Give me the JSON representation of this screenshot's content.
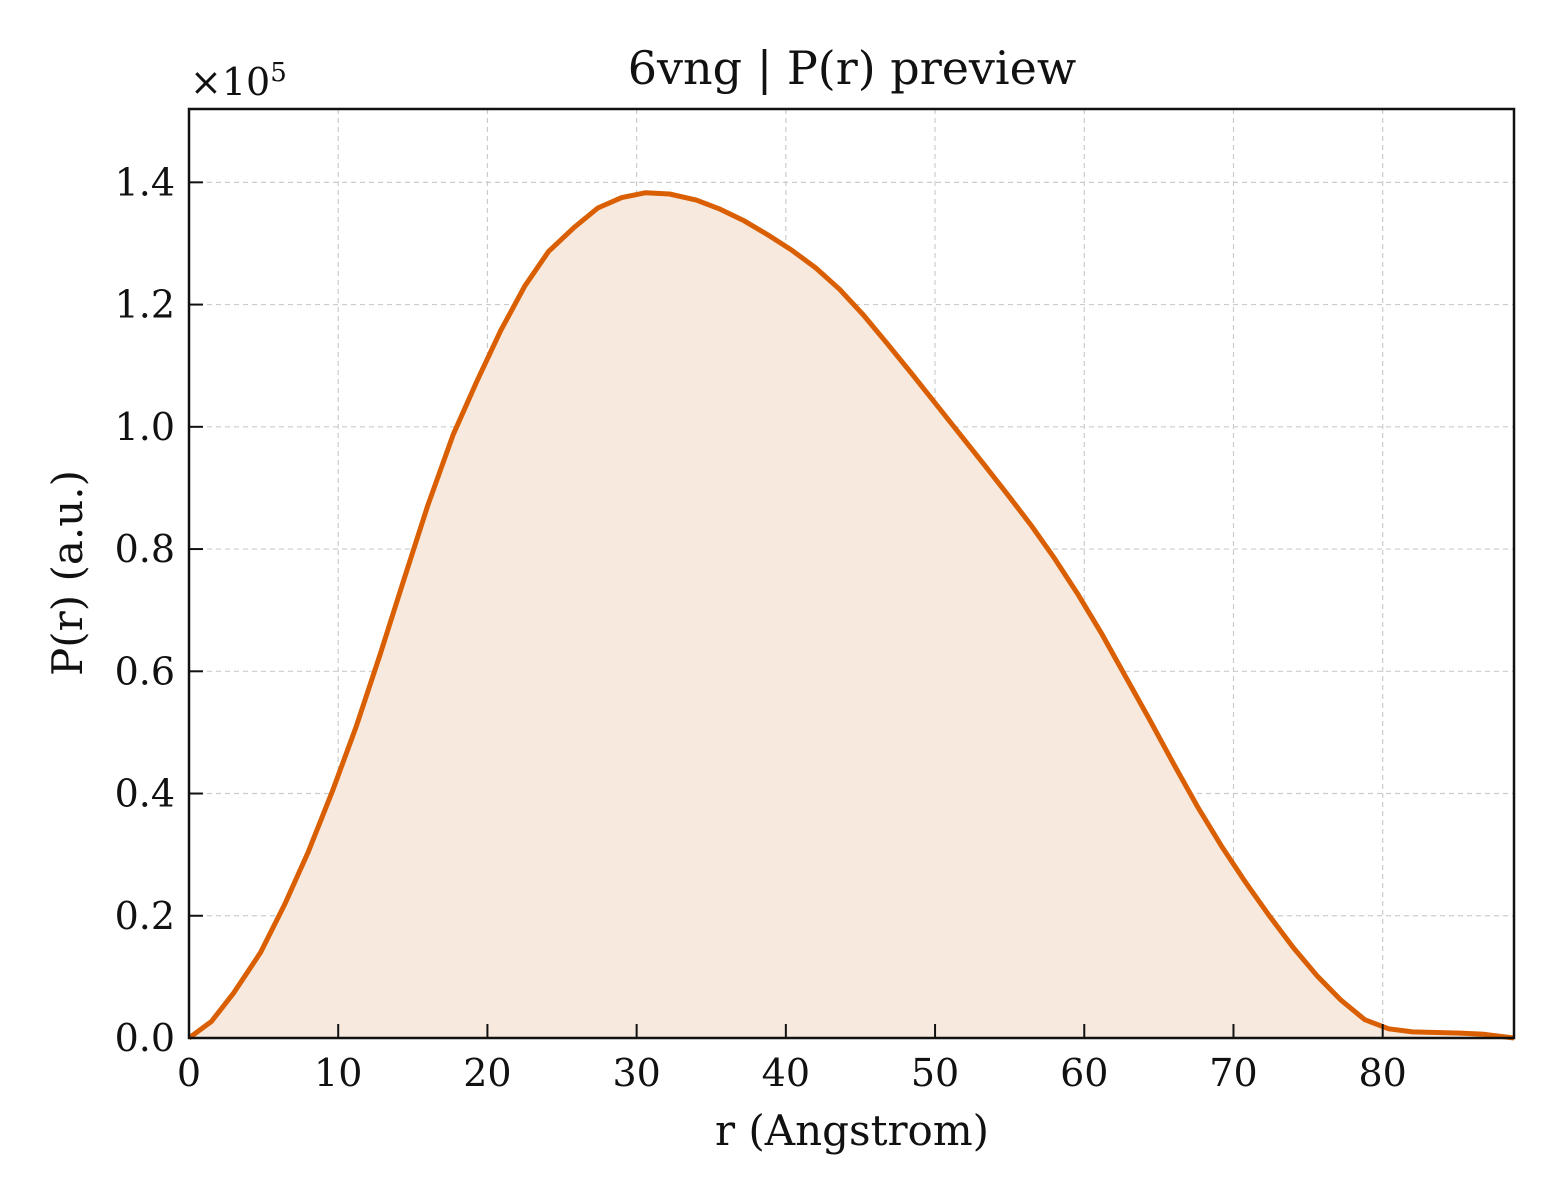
{
  "chart_data": {
    "type": "area",
    "title": "6vng | P(r) preview",
    "xlabel": "r (Angstrom)",
    "ylabel": "P(r) (a.u.)",
    "y_multiplier_label": "×10",
    "y_multiplier_exponent": "5",
    "xlim": [
      0,
      88.8
    ],
    "ylim": [
      0,
      1.52
    ],
    "x_ticks": [
      0,
      10,
      20,
      30,
      40,
      50,
      60,
      70,
      80
    ],
    "x_tick_labels": [
      "0",
      "10",
      "20",
      "30",
      "40",
      "50",
      "60",
      "70",
      "80"
    ],
    "y_ticks": [
      0,
      0.2,
      0.4,
      0.6,
      0.8,
      1.0,
      1.2,
      1.4
    ],
    "y_tick_labels": [
      "0.0",
      "0.2",
      "0.4",
      "0.6",
      "0.8",
      "1.0",
      "1.2",
      "1.4"
    ],
    "grid": true,
    "line_color": "#d95f02",
    "fill_color": "#f8e9de",
    "series": [
      {
        "x": [
          0,
          1.5,
          3.0,
          4.8,
          6.4,
          8.0,
          9.6,
          11.2,
          12.8,
          14.4,
          16.0,
          17.7,
          19.3,
          20.9,
          22.5,
          24.1,
          25.8,
          27.4,
          29.0,
          30.6,
          32.2,
          34.0,
          35.6,
          37.2,
          38.8,
          40.4,
          42.0,
          43.6,
          45.2,
          46.8,
          48.4,
          50.0,
          51.6,
          53.2,
          54.8,
          56.4,
          58.0,
          59.6,
          61.2,
          62.8,
          64.4,
          66.0,
          67.6,
          69.2,
          70.8,
          72.4,
          74.0,
          75.6,
          77.2,
          78.8,
          80.4,
          82.0,
          83.6,
          85.2,
          86.8,
          88.8
        ],
        "y": [
          0.0,
          0.027,
          0.074,
          0.14,
          0.218,
          0.305,
          0.403,
          0.509,
          0.627,
          0.75,
          0.871,
          0.987,
          1.075,
          1.158,
          1.23,
          1.287,
          1.326,
          1.358,
          1.375,
          1.383,
          1.381,
          1.371,
          1.356,
          1.337,
          1.314,
          1.289,
          1.26,
          1.225,
          1.183,
          1.136,
          1.088,
          1.039,
          0.99,
          0.941,
          0.891,
          0.84,
          0.785,
          0.725,
          0.66,
          0.59,
          0.52,
          0.448,
          0.378,
          0.314,
          0.255,
          0.2,
          0.148,
          0.102,
          0.062,
          0.03,
          0.015,
          0.01,
          0.009,
          0.008,
          0.006,
          0.0
        ]
      }
    ]
  }
}
